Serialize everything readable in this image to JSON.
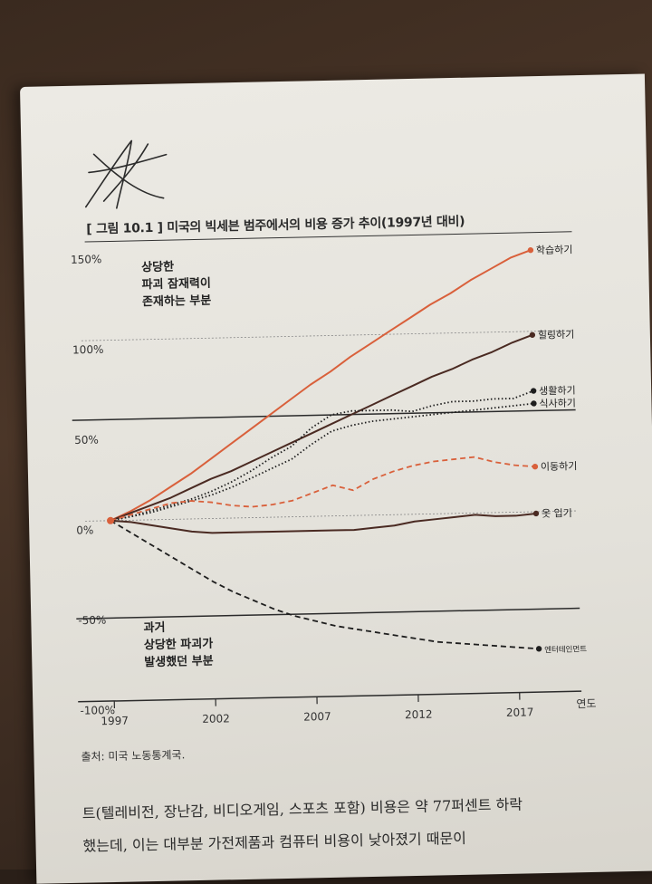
{
  "figure_title": "[ 그림 10.1 ] 미국의 빅세븐 범주에서의 비용 증가 추이(1997년 대비)",
  "source": "출처: 미국 노동통계국.",
  "body_text": [
    "트(텔레비전, 장난감, 비디오게임, 스포츠 포함) 비용은 약 77퍼센트 하락",
    "했는데, 이는 대부분 가전제품과 컴퓨터 비용이 낮아졌기 때문이"
  ],
  "colors": {
    "orange": "#d9603b",
    "dark": "#4a2a22",
    "black": "#1e1e1e"
  },
  "chart_data": {
    "type": "line",
    "title": "[ 그림 10.1 ] 미국의 빅세븐 범주에서의 비용 증가 추이(1997년 대비)",
    "xlabel": "연도",
    "ylabel": "",
    "xlim": [
      1997,
      2018
    ],
    "ylim": [
      -100,
      150
    ],
    "x_ticks": [
      1997,
      2002,
      2007,
      2012,
      2017
    ],
    "y_ticks": [
      150,
      100,
      50,
      0,
      -50,
      -100
    ],
    "y_tick_labels": [
      "150%",
      "100%",
      "50%",
      "0%",
      "-50%",
      "-100%"
    ],
    "region_labels": {
      "upper": [
        "상당한",
        "파괴 잠재력이",
        "존재하는 부분"
      ],
      "lower": [
        "과거",
        "상당한 파괴가",
        "발생했던 부분"
      ]
    },
    "threshold_lines": [
      56,
      -54
    ],
    "series": [
      {
        "name": "학습하기",
        "style": "solid",
        "color": "#d9603b",
        "label_size": "normal",
        "x": [
          1997,
          1998,
          1999,
          2000,
          2001,
          2002,
          2003,
          2004,
          2005,
          2006,
          2007,
          2008,
          2009,
          2010,
          2011,
          2012,
          2013,
          2014,
          2015,
          2016,
          2017,
          2018
        ],
        "y": [
          0,
          5,
          11,
          18,
          25,
          33,
          41,
          49,
          57,
          65,
          73,
          80,
          88,
          95,
          102,
          109,
          116,
          122,
          129,
          135,
          141,
          145
        ]
      },
      {
        "name": "힐링하기",
        "style": "solid",
        "color": "#4a2a22",
        "label_size": "normal",
        "x": [
          1997,
          1998,
          1999,
          2000,
          2001,
          2002,
          2003,
          2004,
          2005,
          2006,
          2007,
          2008,
          2009,
          2010,
          2011,
          2012,
          2013,
          2014,
          2015,
          2016,
          2017,
          2018
        ],
        "y": [
          0,
          4,
          8,
          12,
          17,
          22,
          26,
          31,
          36,
          41,
          46,
          51,
          56,
          61,
          66,
          71,
          76,
          80,
          85,
          89,
          94,
          98
        ]
      },
      {
        "name": "생활하기",
        "style": "dotted",
        "color": "#1e1e1e",
        "label_size": "normal",
        "x": [
          1997,
          1998,
          1999,
          2000,
          2001,
          2002,
          2003,
          2004,
          2005,
          2006,
          2007,
          2008,
          2009,
          2010,
          2011,
          2012,
          2013,
          2014,
          2015,
          2016,
          2017,
          2018
        ],
        "y": [
          0,
          2,
          5,
          8,
          11,
          15,
          20,
          26,
          33,
          39,
          49,
          56,
          58,
          58,
          58,
          57,
          60,
          62,
          62,
          63,
          63,
          67
        ]
      },
      {
        "name": "식사하기",
        "style": "dotted",
        "color": "#1e1e1e",
        "label_size": "normal",
        "x": [
          1997,
          1998,
          1999,
          2000,
          2001,
          2002,
          2003,
          2004,
          2005,
          2006,
          2007,
          2008,
          2009,
          2010,
          2011,
          2012,
          2013,
          2014,
          2015,
          2016,
          2017,
          2018
        ],
        "y": [
          0,
          2,
          4,
          7,
          10,
          13,
          17,
          22,
          27,
          32,
          40,
          47,
          50,
          52,
          53,
          54,
          55,
          56,
          57,
          58,
          59,
          60
        ]
      },
      {
        "name": "이동하기",
        "style": "dashed",
        "color": "#d9603b",
        "label_size": "normal",
        "x": [
          1997,
          1998,
          1999,
          2000,
          2001,
          2002,
          2003,
          2004,
          2005,
          2006,
          2007,
          2008,
          2009,
          2010,
          2011,
          2012,
          2013,
          2014,
          2015,
          2016,
          2017,
          2018
        ],
        "y": [
          0,
          3,
          6,
          9,
          10,
          9,
          7,
          6,
          7,
          9,
          13,
          17,
          14,
          20,
          24,
          27,
          29,
          30,
          31,
          28,
          26,
          25
        ]
      },
      {
        "name": "옷 입기",
        "style": "solid",
        "color": "#4a2a22",
        "label_size": "normal",
        "x": [
          1997,
          1998,
          1999,
          2000,
          2001,
          2002,
          2003,
          2004,
          2005,
          2006,
          2007,
          2008,
          2009,
          2010,
          2011,
          2012,
          2013,
          2014,
          2015,
          2016,
          2017,
          2018
        ],
        "y": [
          0,
          -1,
          -3,
          -5,
          -7,
          -8,
          -8,
          -8,
          -8,
          -8,
          -8,
          -8,
          -8,
          -7,
          -6,
          -4,
          -3,
          -2,
          -1,
          -2,
          -2,
          -1
        ]
      },
      {
        "name": "엔터테인먼트",
        "style": "dashed",
        "color": "#1e1e1e",
        "label_size": "small",
        "x": [
          1997,
          1998,
          1999,
          2000,
          2001,
          2002,
          2003,
          2004,
          2005,
          2006,
          2007,
          2008,
          2009,
          2010,
          2011,
          2012,
          2013,
          2014,
          2015,
          2016,
          2017,
          2018
        ],
        "y": [
          0,
          -7,
          -14,
          -21,
          -28,
          -35,
          -41,
          -46,
          -51,
          -55,
          -58,
          -61,
          -63,
          -65,
          -67,
          -69,
          -71,
          -72,
          -73,
          -74,
          -75,
          -76
        ]
      }
    ]
  }
}
